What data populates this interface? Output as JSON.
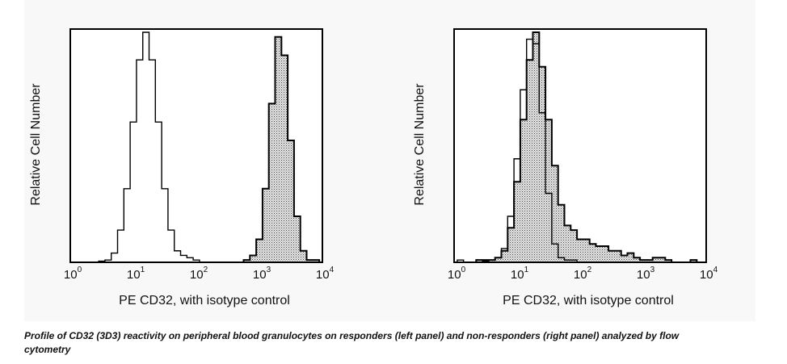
{
  "caption": "Profile of CD32 (3D3) reactivity on peripheral blood granulocytes on responders (left panel) and non-responders (right panel) analyzed by flow cytometry",
  "chart_data": [
    {
      "type": "histogram",
      "panel": "left",
      "xlabel": "PE CD32, with isotype control",
      "ylabel": "Relative Cell Number",
      "xscale": "log10",
      "xlim": [
        0,
        4
      ],
      "ylim": [
        0,
        100
      ],
      "xticks": [
        {
          "base": "10",
          "exp": "0"
        },
        {
          "base": "10",
          "exp": "1"
        },
        {
          "base": "10",
          "exp": "2"
        },
        {
          "base": "10",
          "exp": "3"
        },
        {
          "base": "10",
          "exp": "4"
        }
      ],
      "bin_log10_start": 0,
      "bin_log10_step": 0.1,
      "series": [
        {
          "name": "isotype control",
          "fill": "none",
          "values": [
            0,
            0,
            0,
            0,
            0,
            0.5,
            1,
            4,
            14,
            32,
            61,
            88,
            100,
            88,
            61,
            32,
            14,
            5,
            3,
            2,
            1,
            0,
            0,
            0,
            0,
            0,
            0,
            0,
            0,
            0,
            0,
            0,
            0,
            0,
            0,
            0,
            0,
            0,
            0,
            0,
            0
          ]
        },
        {
          "name": "CD32",
          "fill": "dotted",
          "values": [
            0,
            0,
            0,
            0,
            0,
            0,
            0,
            0,
            0,
            0,
            0,
            0,
            0,
            0,
            0,
            0,
            0,
            0,
            0,
            0,
            0,
            0,
            0,
            0,
            0,
            0,
            0,
            0,
            1,
            3,
            10,
            32,
            69,
            98,
            90,
            53,
            20,
            5,
            1,
            1,
            0
          ]
        }
      ]
    },
    {
      "type": "histogram",
      "panel": "right",
      "xlabel": "PE CD32, with isotype control",
      "ylabel": "Relative Cell Number",
      "xscale": "log10",
      "xlim": [
        0,
        4
      ],
      "ylim": [
        0,
        100
      ],
      "xticks": [
        {
          "base": "10",
          "exp": "0"
        },
        {
          "base": "10",
          "exp": "1"
        },
        {
          "base": "10",
          "exp": "2"
        },
        {
          "base": "10",
          "exp": "3"
        },
        {
          "base": "10",
          "exp": "4"
        }
      ],
      "bin_log10_start": 0,
      "bin_log10_step": 0.1,
      "series": [
        {
          "name": "isotype control",
          "fill": "none",
          "values": [
            0,
            1,
            0,
            0,
            0,
            0.5,
            1,
            2,
            6,
            20,
            45,
            75,
            97,
            95,
            65,
            30,
            8,
            2,
            1,
            1,
            0,
            0,
            0,
            0,
            0,
            0,
            0,
            0,
            0,
            0,
            0,
            0,
            0,
            0,
            0,
            0,
            0,
            0,
            0,
            0,
            0
          ]
        },
        {
          "name": "CD32",
          "fill": "dotted",
          "values": [
            0,
            0,
            0,
            0,
            1,
            1,
            1,
            2,
            5,
            15,
            35,
            62,
            88,
            100,
            85,
            62,
            42,
            25,
            16,
            14,
            10,
            10,
            8,
            7,
            7,
            5,
            5,
            3,
            4,
            2,
            1,
            1,
            2,
            2,
            1,
            0,
            0,
            0,
            1,
            0,
            0
          ]
        }
      ]
    }
  ]
}
